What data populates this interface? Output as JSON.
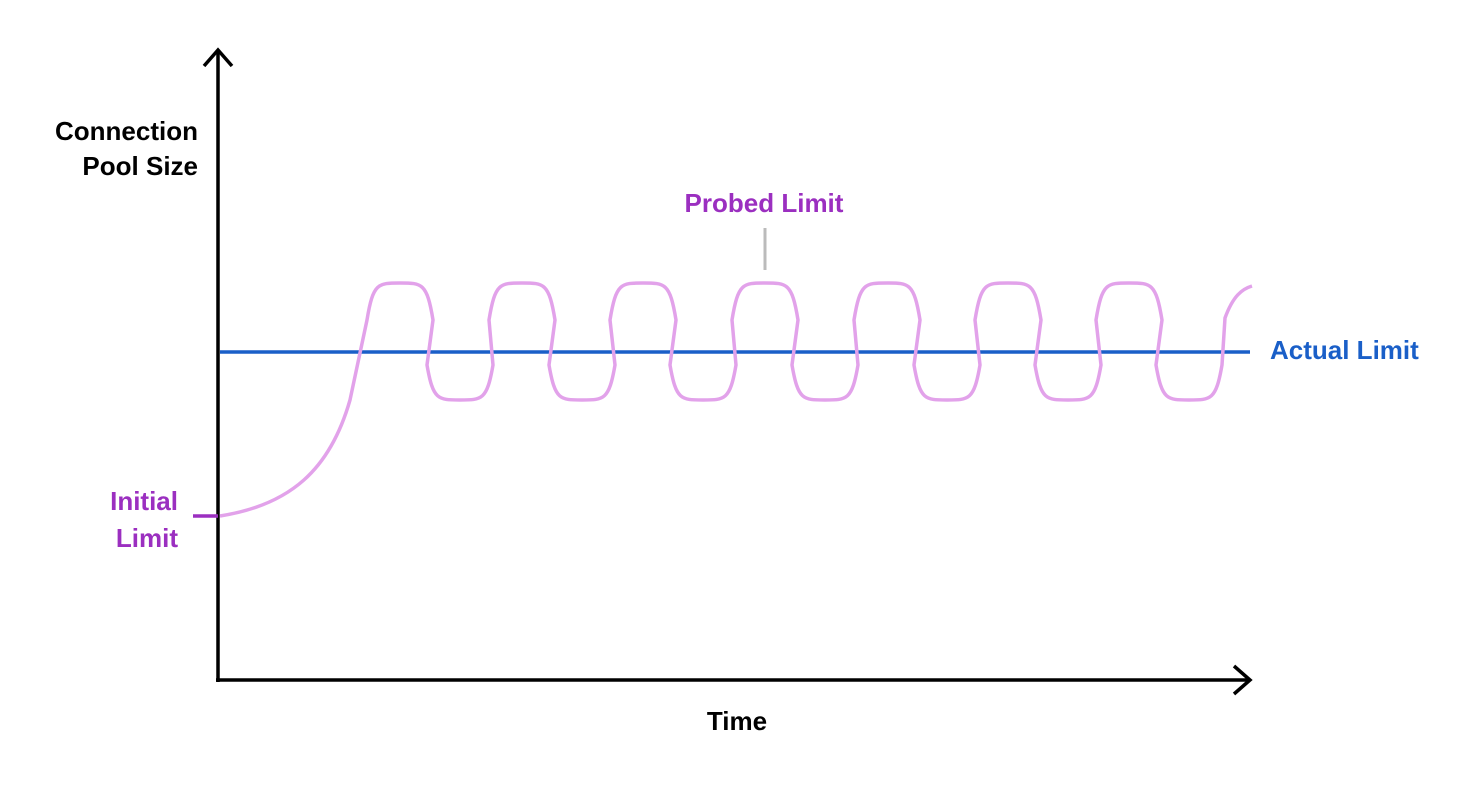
{
  "y_axis_label": [
    "Connection",
    "Pool Size"
  ],
  "x_axis_label": "Time",
  "probed_limit_label": "Probed Limit",
  "actual_limit_label": "Actual Limit",
  "initial_limit_label": [
    "Initial",
    "Limit"
  ]
}
